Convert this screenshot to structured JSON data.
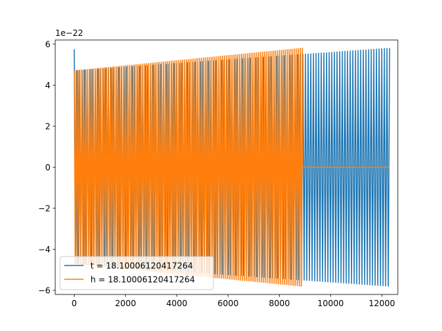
{
  "chart_data": {
    "type": "line",
    "title": "",
    "xlabel": "",
    "ylabel": "",
    "y_offset_text": "1e−22",
    "xlim": [
      -740,
      12620
    ],
    "ylim": [
      -6.2,
      6.2
    ],
    "xticks": [
      0,
      2000,
      4000,
      6000,
      8000,
      10000,
      12000
    ],
    "xtick_labels": [
      "0",
      "2000",
      "4000",
      "6000",
      "8000",
      "10000",
      "12000"
    ],
    "yticks": [
      -6,
      -4,
      -2,
      0,
      2,
      4,
      6
    ],
    "ytick_labels": [
      "−6",
      "−4",
      "−2",
      "0",
      "2",
      "4",
      "6"
    ],
    "grid": false,
    "legend_position": "lower-left",
    "series": [
      {
        "name": "t = 18.10006120417264",
        "color": "#1f77b4",
        "x_start": 0,
        "x_end": 12300,
        "amplitude_start": 4.7,
        "amplitude_end": 5.8,
        "initial_spike": 5.75,
        "cycles": 120
      },
      {
        "name": "h = 18.10006120417264",
        "color": "#ff7f0e",
        "x_start": 0,
        "x_end": 8900,
        "amplitude_start": 4.7,
        "amplitude_end": 5.8,
        "cycles": 120,
        "flat_after": 12300
      }
    ]
  }
}
